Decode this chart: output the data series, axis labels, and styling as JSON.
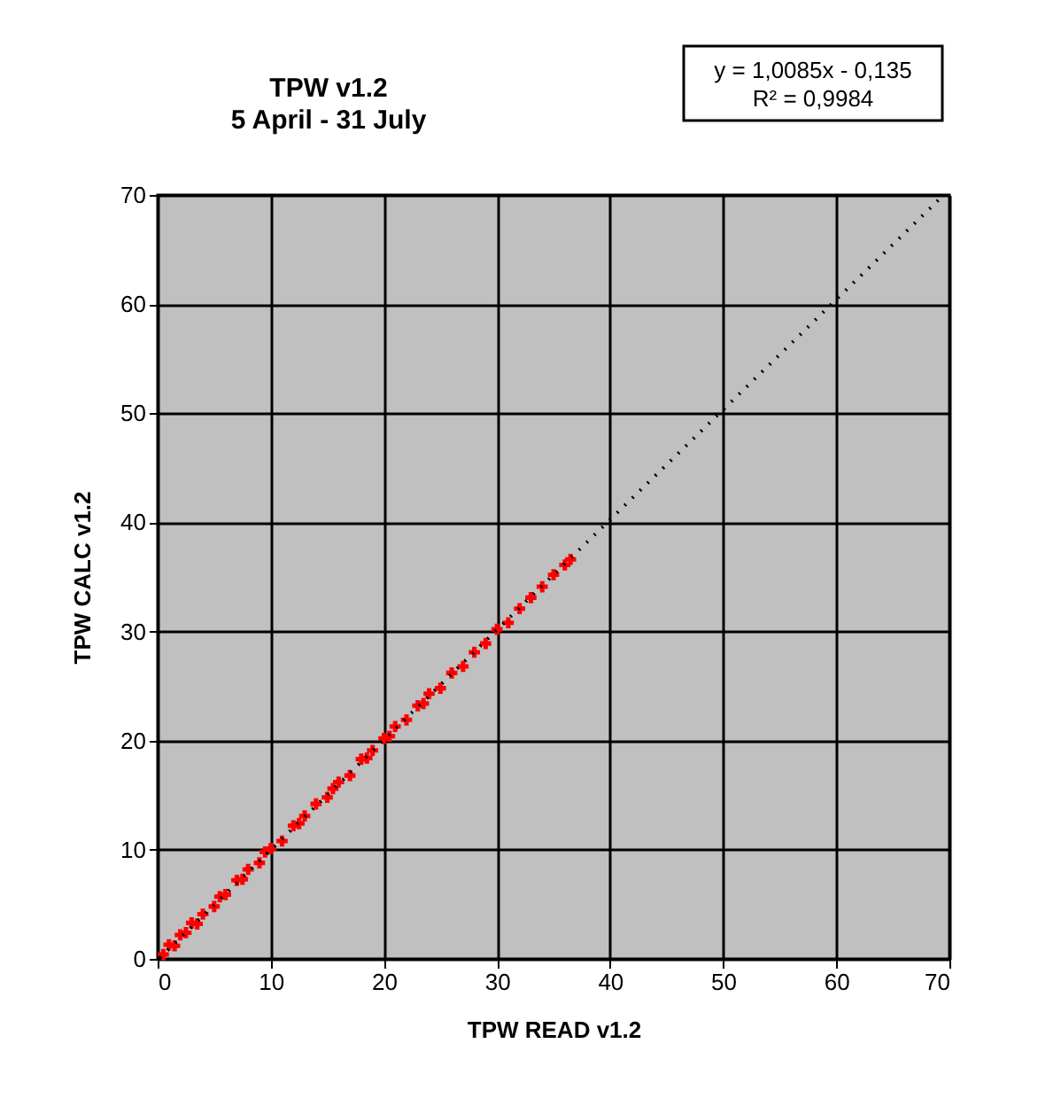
{
  "chart_data": {
    "type": "scatter",
    "title": "TPW v1.2",
    "subtitle": "5 April - 31 July",
    "xlabel": "TPW READ v1.2",
    "ylabel": "TPW CALC v1.2",
    "series": [
      {
        "type": "scatter",
        "color": "#ff0000",
        "marker": "cross",
        "x": [
          0.5,
          1,
          1.5,
          2,
          2.5,
          3,
          3.5,
          4,
          5,
          5.5,
          6,
          7,
          7.5,
          8,
          9,
          9.5,
          10,
          11,
          12,
          12.5,
          13,
          14,
          15,
          15.5,
          16,
          17,
          18,
          18.5,
          19,
          20,
          20.5,
          21,
          22,
          23,
          23.5,
          24,
          25,
          26,
          27,
          28,
          29,
          30,
          31,
          32,
          33,
          34,
          35,
          36,
          36.5
        ],
        "values": [
          0.4,
          1.3,
          1.2,
          2.2,
          2.4,
          3.3,
          3.2,
          4.1,
          4.8,
          5.7,
          5.9,
          7.2,
          7.3,
          8.2,
          8.8,
          9.8,
          10.1,
          10.8,
          12.2,
          12.4,
          13.1,
          14.2,
          14.8,
          15.6,
          16.2,
          16.8,
          18.3,
          18.4,
          19.1,
          20.2,
          20.4,
          21.3,
          21.9,
          23.2,
          23.4,
          24.3,
          24.8,
          26.2,
          26.8,
          28.1,
          28.9,
          30.2,
          30.8,
          32.1,
          33.1,
          34.1,
          35.2,
          36.1,
          36.6
        ]
      },
      {
        "type": "line",
        "color": "#000000",
        "line_style": "dotted",
        "x": [
          0.2,
          69.5
        ],
        "values": [
          0.1,
          70
        ]
      }
    ],
    "annotations": [
      "y = 1,0085x - 0,135",
      "R² = 0,9984"
    ],
    "xlim": [
      0,
      70
    ],
    "ylim": [
      0,
      70
    ],
    "xticks": [
      0,
      10,
      20,
      30,
      40,
      50,
      60,
      70
    ],
    "yticks": [
      0,
      10,
      20,
      30,
      40,
      50,
      60,
      70
    ],
    "grid": true
  }
}
